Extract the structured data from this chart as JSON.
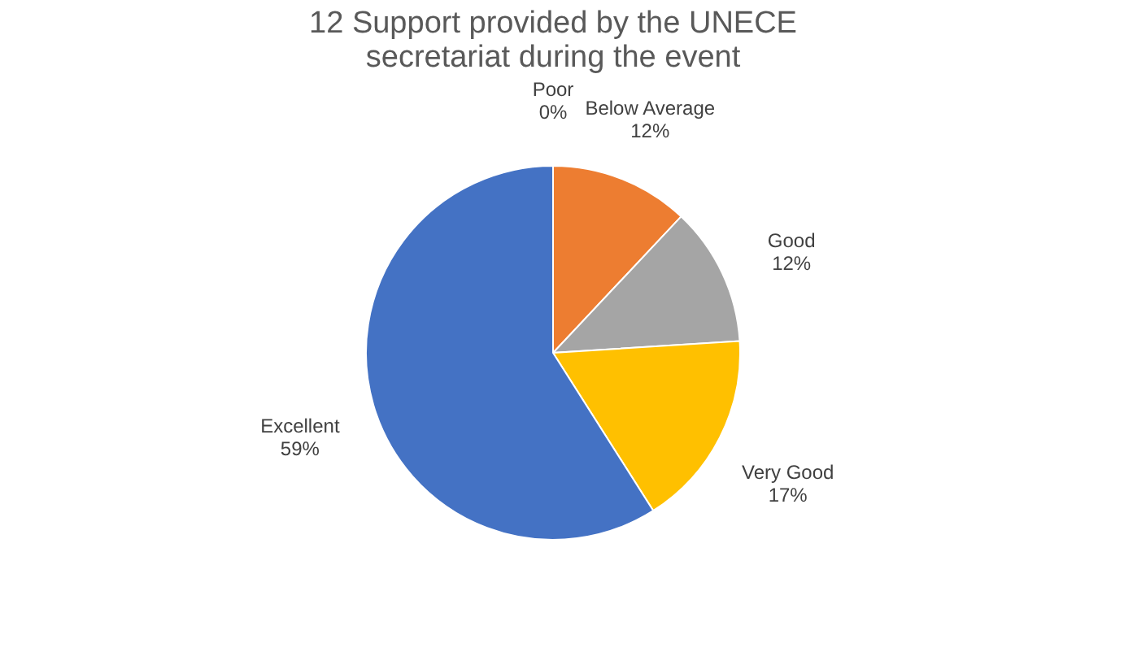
{
  "chart_data": {
    "type": "pie",
    "title": "12 Support provided by the UNECE secretariat during the event",
    "categories": [
      "Poor",
      "Below Average",
      "Good",
      "Very Good",
      "Excellent"
    ],
    "values": [
      0,
      12,
      12,
      17,
      59
    ],
    "value_labels": [
      "0%",
      "12%",
      "12%",
      "17%",
      "59%"
    ],
    "colors": [
      "#5b9bd5",
      "#ed7d31",
      "#a5a5a5",
      "#ffc000",
      "#4472c4"
    ],
    "legend": false
  }
}
